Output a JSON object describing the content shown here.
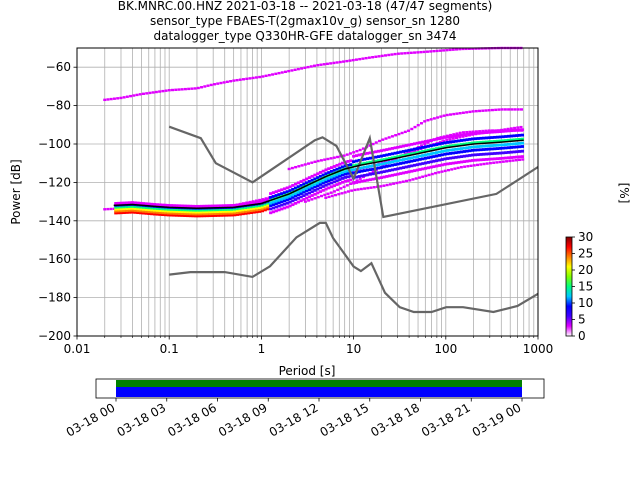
{
  "title_lines": [
    "BK.MNRC.00.HNZ   2021-03-18 -- 2021-03-18  (47/47 segments)",
    "sensor_type FBAES-T(2gmax10v_g) sensor_sn 1280",
    "datalogger_type Q330HR-GFE datalogger_sn 3474"
  ],
  "chart_data": {
    "type": "heatmap",
    "xlabel": "Period [s]",
    "ylabel": "Power [dB]",
    "x_scale": "log",
    "xlim": [
      0.01,
      1000
    ],
    "ylim": [
      -200,
      -50
    ],
    "x_ticks": [
      {
        "value": 0.01,
        "label": "0.01"
      },
      {
        "value": 0.1,
        "label": "0.1"
      },
      {
        "value": 1,
        "label": "1"
      },
      {
        "value": 10,
        "label": "10"
      },
      {
        "value": 100,
        "label": "100"
      },
      {
        "value": 1000,
        "label": "1000"
      }
    ],
    "y_ticks": [
      {
        "value": -60,
        "label": "−60"
      },
      {
        "value": -80,
        "label": "−80"
      },
      {
        "value": -100,
        "label": "−100"
      },
      {
        "value": -120,
        "label": "−120"
      },
      {
        "value": -140,
        "label": "−140"
      },
      {
        "value": -160,
        "label": "−160"
      },
      {
        "value": -180,
        "label": "−180"
      },
      {
        "value": -200,
        "label": "−200"
      }
    ],
    "grid": true,
    "colorbar": {
      "label": "[%]",
      "range": [
        0,
        30
      ],
      "ticks": [
        {
          "value": 0,
          "label": "0"
        },
        {
          "value": 5,
          "label": "5"
        },
        {
          "value": 10,
          "label": "10"
        },
        {
          "value": 15,
          "label": "15"
        },
        {
          "value": 20,
          "label": "20"
        },
        {
          "value": 25,
          "label": "25"
        },
        {
          "value": 30,
          "label": "30"
        }
      ],
      "colors": [
        "#ffffff",
        "#e000ff",
        "#4000ff",
        "#0000ff",
        "#00c8ff",
        "#00ff80",
        "#80ff00",
        "#ffff00",
        "#ff8000",
        "#ff0000",
        "#800000"
      ]
    },
    "noise_models": {
      "color": "#666666",
      "high": [
        [
          0.1,
          -91
        ],
        [
          0.22,
          -97
        ],
        [
          0.32,
          -110
        ],
        [
          0.8,
          -120
        ],
        [
          3.8,
          -98
        ],
        [
          4.6,
          -96.5
        ],
        [
          6.5,
          -101
        ],
        [
          10,
          -118
        ],
        [
          15,
          -97
        ],
        [
          21,
          -138
        ],
        [
          354,
          -126
        ],
        [
          1000,
          -112
        ]
      ],
      "low": [
        [
          0.1,
          -168
        ],
        [
          0.17,
          -166.7
        ],
        [
          0.4,
          -166.7
        ],
        [
          0.8,
          -169.2
        ],
        [
          1.24,
          -163.7
        ],
        [
          2.4,
          -148.6
        ],
        [
          4.3,
          -141.1
        ],
        [
          5,
          -141.1
        ],
        [
          6,
          -149
        ],
        [
          10,
          -163.8
        ],
        [
          12,
          -166.2
        ],
        [
          15.6,
          -162.1
        ],
        [
          21.9,
          -177.5
        ],
        [
          31.6,
          -185
        ],
        [
          45,
          -187.5
        ],
        [
          70,
          -187.5
        ],
        [
          101,
          -185
        ],
        [
          154,
          -185
        ],
        [
          328,
          -187.5
        ],
        [
          600,
          -184.4
        ],
        [
          1000,
          -178
        ]
      ]
    },
    "mean_line": {
      "color": "#000000",
      "points": [
        [
          0.025,
          -132
        ],
        [
          0.04,
          -131.5
        ],
        [
          0.07,
          -132.5
        ],
        [
          0.1,
          -133
        ],
        [
          0.2,
          -133.5
        ],
        [
          0.5,
          -133
        ],
        [
          1,
          -131
        ],
        [
          2,
          -126
        ],
        [
          3,
          -122
        ],
        [
          5,
          -117
        ],
        [
          8,
          -113
        ],
        [
          12,
          -111
        ],
        [
          20,
          -109
        ],
        [
          50,
          -105
        ],
        [
          100,
          -102
        ],
        [
          200,
          -100
        ],
        [
          400,
          -99
        ],
        [
          700,
          -98
        ]
      ]
    },
    "magenta_curves": [
      {
        "points": [
          [
            0.02,
            -77
          ],
          [
            0.03,
            -76
          ],
          [
            0.05,
            -74
          ],
          [
            0.1,
            -72
          ],
          [
            0.2,
            -71
          ],
          [
            0.3,
            -69
          ],
          [
            0.5,
            -67
          ],
          [
            1,
            -65
          ],
          [
            2,
            -62
          ],
          [
            4,
            -59
          ],
          [
            8,
            -57
          ],
          [
            15,
            -55
          ],
          [
            30,
            -53
          ],
          [
            60,
            -52
          ],
          [
            150,
            -50.5
          ],
          [
            400,
            -50
          ],
          [
            700,
            -50
          ]
        ]
      },
      {
        "points": [
          [
            0.02,
            -134
          ],
          [
            0.05,
            -133
          ],
          [
            0.15,
            -133
          ],
          [
            0.5,
            -132
          ],
          [
            1,
            -129
          ],
          [
            3,
            -123
          ],
          [
            6,
            -118
          ],
          [
            10,
            -114
          ],
          [
            20,
            -110
          ],
          [
            50,
            -103
          ],
          [
            100,
            -98
          ],
          [
            200,
            -95
          ],
          [
            500,
            -92
          ],
          [
            700,
            -91
          ]
        ]
      },
      {
        "points": [
          [
            3,
            -130
          ],
          [
            6,
            -125
          ],
          [
            10,
            -120
          ],
          [
            20,
            -112
          ],
          [
            40,
            -104
          ],
          [
            80,
            -97
          ],
          [
            150,
            -94
          ],
          [
            300,
            -93
          ],
          [
            700,
            -93
          ]
        ]
      },
      {
        "points": [
          [
            2,
            -113
          ],
          [
            4,
            -109
          ],
          [
            8,
            -106
          ],
          [
            12,
            -103
          ],
          [
            20,
            -98
          ],
          [
            40,
            -93
          ],
          [
            60,
            -88
          ],
          [
            100,
            -85
          ],
          [
            200,
            -83
          ],
          [
            400,
            -82
          ],
          [
            700,
            -82
          ]
        ]
      },
      {
        "points": [
          [
            5,
            -128
          ],
          [
            10,
            -124
          ],
          [
            20,
            -122
          ],
          [
            40,
            -119
          ],
          [
            80,
            -115
          ],
          [
            150,
            -112
          ],
          [
            300,
            -110
          ],
          [
            700,
            -108
          ]
        ]
      }
    ],
    "red_band": {
      "x_range": [
        0.02,
        1.0
      ],
      "values": [
        -134,
        -135
      ]
    }
  },
  "time_bar": {
    "ticks": [
      "03-18 00",
      "03-18 03",
      "03-18 06",
      "03-18 09",
      "03-18 12",
      "03-18 15",
      "03-18 18",
      "03-18 21",
      "03-19 00"
    ],
    "start_hour": 0,
    "end_hour": 24,
    "colors": {
      "data": "#0000ff",
      "full": "#008000"
    }
  }
}
